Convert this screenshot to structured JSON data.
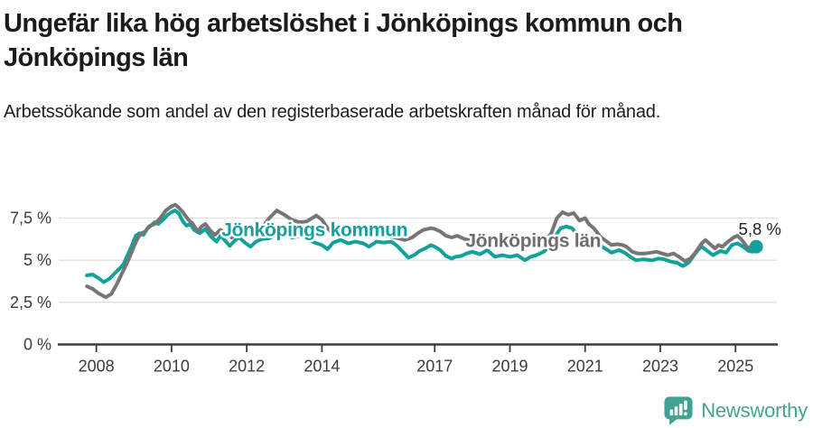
{
  "header": {
    "title": "Ungefär lika hög arbetslöshet i Jönköpings kommun och Jönköpings län",
    "subtitle": "Arbetssökande som andel av den registerbaserade arbetskraften månad för månad."
  },
  "footer": {
    "brand": "Newsworthy"
  },
  "colors": {
    "kommun_teal": "#12a19b",
    "lan_gray": "#767676",
    "lan_label_gray": "#6d6d6d",
    "title_dark": "#1b1b1b",
    "annotation_dark": "#1f1f1f",
    "axis_text": "#3c3c3c",
    "axis_line": "#3c3c3c",
    "grid": "#e0e0e0",
    "logo_teal": "#43a292",
    "halo_white": "#ffffff"
  },
  "chart_data": {
    "type": "line",
    "unit": "%",
    "grid": "horizontal",
    "x_range": [
      2007.0,
      2026.1
    ],
    "y_range": [
      0,
      8.6
    ],
    "x_ticks": [
      2008,
      2010,
      2012,
      2014,
      2017,
      2019,
      2021,
      2023,
      2025
    ],
    "y_ticks": [
      {
        "value": 0,
        "label": "0 %"
      },
      {
        "value": 2.5,
        "label": "2,5 %"
      },
      {
        "value": 5,
        "label": "5 %"
      },
      {
        "value": 7.5,
        "label": "7,5 %"
      }
    ],
    "end_annotation": {
      "text": "5,8 %",
      "year": 2025.08,
      "value": 6.5
    },
    "series": [
      {
        "name": "Jönköpings kommun",
        "key": "kommun",
        "color_key": "kommun_teal",
        "end_dot": true,
        "label_pos": {
          "year": 2011.33,
          "value": 6.43
        },
        "points": [
          [
            2007.75,
            4.1
          ],
          [
            2007.9,
            4.15
          ],
          [
            2008.05,
            3.95
          ],
          [
            2008.2,
            3.7
          ],
          [
            2008.35,
            3.9
          ],
          [
            2008.5,
            4.25
          ],
          [
            2008.62,
            4.5
          ],
          [
            2008.72,
            4.75
          ],
          [
            2008.82,
            5.25
          ],
          [
            2008.95,
            5.9
          ],
          [
            2009.05,
            6.45
          ],
          [
            2009.15,
            6.6
          ],
          [
            2009.25,
            6.5
          ],
          [
            2009.35,
            6.85
          ],
          [
            2009.45,
            7.05
          ],
          [
            2009.55,
            7.25
          ],
          [
            2009.65,
            7.15
          ],
          [
            2009.8,
            7.45
          ],
          [
            2009.9,
            7.7
          ],
          [
            2010.0,
            7.85
          ],
          [
            2010.1,
            7.95
          ],
          [
            2010.2,
            7.75
          ],
          [
            2010.3,
            7.3
          ],
          [
            2010.4,
            7.05
          ],
          [
            2010.5,
            7.15
          ],
          [
            2010.6,
            6.8
          ],
          [
            2010.75,
            6.6
          ],
          [
            2010.9,
            6.85
          ],
          [
            2011.05,
            6.4
          ],
          [
            2011.2,
            6.1
          ],
          [
            2011.3,
            6.45
          ],
          [
            2011.45,
            6.1
          ],
          [
            2011.55,
            5.85
          ],
          [
            2011.7,
            6.2
          ],
          [
            2011.8,
            6.35
          ],
          [
            2011.95,
            6.05
          ],
          [
            2012.1,
            5.8
          ],
          [
            2012.25,
            6.1
          ],
          [
            2012.4,
            6.25
          ],
          [
            2012.6,
            6.3
          ],
          [
            2012.8,
            6.55
          ],
          [
            2013.0,
            6.6
          ],
          [
            2013.2,
            6.35
          ],
          [
            2013.45,
            6.45
          ],
          [
            2013.65,
            6.2
          ],
          [
            2013.8,
            6.05
          ],
          [
            2014.0,
            5.9
          ],
          [
            2014.15,
            5.65
          ],
          [
            2014.3,
            6.05
          ],
          [
            2014.5,
            6.2
          ],
          [
            2014.7,
            6.0
          ],
          [
            2014.9,
            6.1
          ],
          [
            2015.1,
            6.0
          ],
          [
            2015.25,
            5.8
          ],
          [
            2015.45,
            6.1
          ],
          [
            2015.65,
            6.05
          ],
          [
            2015.85,
            6.1
          ],
          [
            2016.0,
            5.85
          ],
          [
            2016.15,
            5.5
          ],
          [
            2016.3,
            5.15
          ],
          [
            2016.45,
            5.3
          ],
          [
            2016.6,
            5.55
          ],
          [
            2016.75,
            5.7
          ],
          [
            2016.9,
            5.9
          ],
          [
            2017.0,
            5.8
          ],
          [
            2017.15,
            5.6
          ],
          [
            2017.3,
            5.25
          ],
          [
            2017.45,
            5.1
          ],
          [
            2017.55,
            5.2
          ],
          [
            2017.7,
            5.25
          ],
          [
            2017.85,
            5.4
          ],
          [
            2018.0,
            5.5
          ],
          [
            2018.2,
            5.35
          ],
          [
            2018.4,
            5.6
          ],
          [
            2018.6,
            5.2
          ],
          [
            2018.8,
            5.3
          ],
          [
            2019.0,
            5.2
          ],
          [
            2019.2,
            5.3
          ],
          [
            2019.4,
            5.0
          ],
          [
            2019.55,
            5.2
          ],
          [
            2019.7,
            5.3
          ],
          [
            2019.9,
            5.5
          ],
          [
            2020.05,
            5.8
          ],
          [
            2020.2,
            6.4
          ],
          [
            2020.35,
            6.9
          ],
          [
            2020.5,
            7.0
          ],
          [
            2020.65,
            6.9
          ],
          [
            2020.8,
            6.5
          ],
          [
            2020.95,
            6.4
          ],
          [
            2021.1,
            6.2
          ],
          [
            2021.25,
            6.0
          ],
          [
            2021.45,
            5.8
          ],
          [
            2021.6,
            5.6
          ],
          [
            2021.7,
            5.45
          ],
          [
            2021.9,
            5.6
          ],
          [
            2022.05,
            5.45
          ],
          [
            2022.2,
            5.2
          ],
          [
            2022.35,
            5.0
          ],
          [
            2022.55,
            5.05
          ],
          [
            2022.8,
            5.0
          ],
          [
            2022.95,
            5.1
          ],
          [
            2023.1,
            5.05
          ],
          [
            2023.3,
            4.9
          ],
          [
            2023.45,
            4.85
          ],
          [
            2023.6,
            4.65
          ],
          [
            2023.75,
            4.85
          ],
          [
            2023.9,
            5.3
          ],
          [
            2024.0,
            5.6
          ],
          [
            2024.1,
            5.8
          ],
          [
            2024.25,
            5.55
          ],
          [
            2024.4,
            5.3
          ],
          [
            2024.6,
            5.55
          ],
          [
            2024.75,
            5.45
          ],
          [
            2024.9,
            5.9
          ],
          [
            2025.05,
            6.0
          ],
          [
            2025.2,
            5.8
          ],
          [
            2025.35,
            5.55
          ],
          [
            2025.45,
            5.5
          ],
          [
            2025.55,
            5.8
          ]
        ]
      },
      {
        "name": "Jönköpings län",
        "key": "lan",
        "color_key": "lan_gray",
        "end_dot": false,
        "label_pos": {
          "year": 2017.82,
          "value": 5.78
        },
        "points": [
          [
            2007.75,
            3.45
          ],
          [
            2007.9,
            3.3
          ],
          [
            2008.05,
            3.05
          ],
          [
            2008.25,
            2.8
          ],
          [
            2008.4,
            3.0
          ],
          [
            2008.55,
            3.6
          ],
          [
            2008.7,
            4.3
          ],
          [
            2008.85,
            5.0
          ],
          [
            2009.0,
            5.8
          ],
          [
            2009.1,
            6.3
          ],
          [
            2009.2,
            6.6
          ],
          [
            2009.3,
            6.7
          ],
          [
            2009.4,
            7.0
          ],
          [
            2009.55,
            7.15
          ],
          [
            2009.7,
            7.5
          ],
          [
            2009.85,
            7.95
          ],
          [
            2010.0,
            8.2
          ],
          [
            2010.1,
            8.3
          ],
          [
            2010.2,
            8.1
          ],
          [
            2010.3,
            7.85
          ],
          [
            2010.45,
            7.4
          ],
          [
            2010.55,
            7.2
          ],
          [
            2010.7,
            6.7
          ],
          [
            2010.8,
            7.0
          ],
          [
            2010.9,
            7.15
          ],
          [
            2011.0,
            6.85
          ],
          [
            2011.15,
            6.5
          ],
          [
            2011.3,
            6.8
          ],
          [
            2011.45,
            6.6
          ],
          [
            2011.6,
            6.35
          ],
          [
            2011.8,
            6.6
          ],
          [
            2012.0,
            6.4
          ],
          [
            2012.2,
            6.55
          ],
          [
            2012.4,
            6.9
          ],
          [
            2012.6,
            7.5
          ],
          [
            2012.8,
            7.95
          ],
          [
            2013.0,
            7.7
          ],
          [
            2013.2,
            7.4
          ],
          [
            2013.4,
            7.25
          ],
          [
            2013.6,
            7.3
          ],
          [
            2013.85,
            7.65
          ],
          [
            2014.0,
            7.4
          ],
          [
            2014.15,
            6.9
          ],
          [
            2014.3,
            6.55
          ],
          [
            2014.5,
            6.6
          ],
          [
            2014.7,
            6.5
          ],
          [
            2014.9,
            6.6
          ],
          [
            2015.1,
            6.45
          ],
          [
            2015.3,
            6.4
          ],
          [
            2015.5,
            6.55
          ],
          [
            2015.7,
            6.45
          ],
          [
            2015.95,
            6.35
          ],
          [
            2016.2,
            6.2
          ],
          [
            2016.4,
            6.35
          ],
          [
            2016.55,
            6.6
          ],
          [
            2016.7,
            6.8
          ],
          [
            2016.9,
            6.9
          ],
          [
            2017.0,
            6.85
          ],
          [
            2017.15,
            6.7
          ],
          [
            2017.3,
            6.45
          ],
          [
            2017.45,
            6.35
          ],
          [
            2017.6,
            6.45
          ],
          [
            2017.8,
            6.25
          ],
          [
            2018.0,
            6.15
          ],
          [
            2018.2,
            6.0
          ],
          [
            2018.4,
            6.1
          ],
          [
            2018.6,
            5.95
          ],
          [
            2018.8,
            6.05
          ],
          [
            2019.0,
            5.9
          ],
          [
            2019.2,
            5.85
          ],
          [
            2019.4,
            5.9
          ],
          [
            2019.6,
            5.9
          ],
          [
            2019.8,
            6.0
          ],
          [
            2019.95,
            6.15
          ],
          [
            2020.1,
            6.6
          ],
          [
            2020.25,
            7.5
          ],
          [
            2020.4,
            7.85
          ],
          [
            2020.55,
            7.7
          ],
          [
            2020.7,
            7.8
          ],
          [
            2020.85,
            7.35
          ],
          [
            2021.0,
            7.5
          ],
          [
            2021.1,
            7.15
          ],
          [
            2021.25,
            6.85
          ],
          [
            2021.4,
            6.4
          ],
          [
            2021.55,
            6.15
          ],
          [
            2021.7,
            5.9
          ],
          [
            2021.85,
            5.95
          ],
          [
            2022.0,
            5.9
          ],
          [
            2022.1,
            5.8
          ],
          [
            2022.25,
            5.5
          ],
          [
            2022.4,
            5.4
          ],
          [
            2022.6,
            5.4
          ],
          [
            2022.75,
            5.45
          ],
          [
            2022.9,
            5.5
          ],
          [
            2023.05,
            5.4
          ],
          [
            2023.2,
            5.3
          ],
          [
            2023.35,
            5.4
          ],
          [
            2023.5,
            5.2
          ],
          [
            2023.65,
            4.95
          ],
          [
            2023.8,
            5.1
          ],
          [
            2023.95,
            5.5
          ],
          [
            2024.1,
            6.0
          ],
          [
            2024.2,
            6.2
          ],
          [
            2024.3,
            6.0
          ],
          [
            2024.45,
            5.7
          ],
          [
            2024.55,
            5.9
          ],
          [
            2024.65,
            5.8
          ],
          [
            2024.8,
            6.1
          ],
          [
            2024.95,
            6.35
          ],
          [
            2025.05,
            6.45
          ],
          [
            2025.15,
            6.25
          ],
          [
            2025.3,
            5.8
          ],
          [
            2025.45,
            5.65
          ],
          [
            2025.55,
            5.85
          ]
        ]
      }
    ]
  }
}
